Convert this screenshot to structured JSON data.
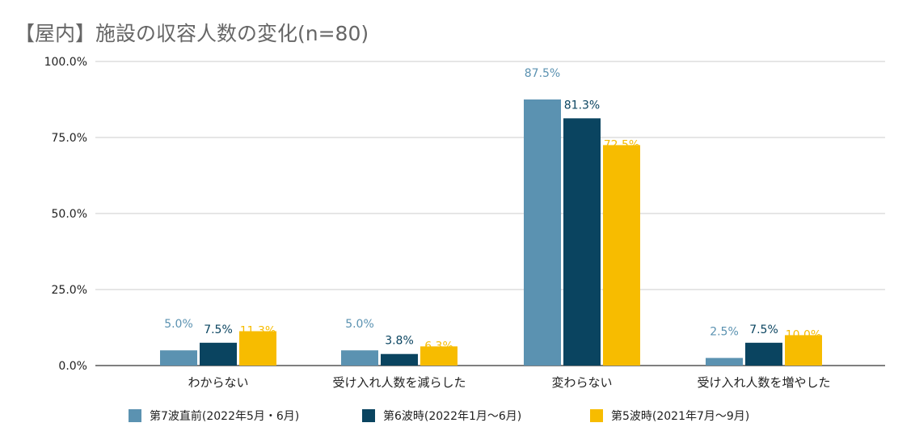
{
  "chart_data": {
    "type": "bar",
    "title": "【屋内】施設の収容人数の変化(n=80)",
    "categories": [
      "わからない",
      "受け入れ人数を減らした",
      "変わらない",
      "受け入れ人数を増やした"
    ],
    "series": [
      {
        "name": "第7波直前(2022年5月・6月)",
        "color": "#5b92b1",
        "values": [
          5.0,
          5.0,
          87.5,
          2.5
        ],
        "labels": [
          "5.0%",
          "5.0%",
          "87.5%",
          "2.5%"
        ]
      },
      {
        "name": "第6波時(2022年1月〜6月)",
        "color": "#0a4460",
        "values": [
          7.5,
          3.8,
          81.3,
          7.5
        ],
        "labels": [
          "7.5%",
          "3.8%",
          "81.3%",
          "7.5%"
        ]
      },
      {
        "name": "第5波時(2021年7月〜9月)",
        "color": "#f7bc00",
        "values": [
          11.3,
          6.3,
          72.5,
          10.0
        ],
        "labels": [
          "11.3%",
          "6.3%",
          "72.5%",
          "10.0%"
        ]
      }
    ],
    "yticks": [
      0,
      25,
      50,
      75,
      100
    ],
    "ytick_labels": [
      "0.0%",
      "25.0%",
      "50.0%",
      "75.0%",
      "100.0%"
    ],
    "ylim": [
      0,
      100
    ],
    "xlabel": "",
    "ylabel": "",
    "grid": true,
    "legend_position": "bottom"
  }
}
